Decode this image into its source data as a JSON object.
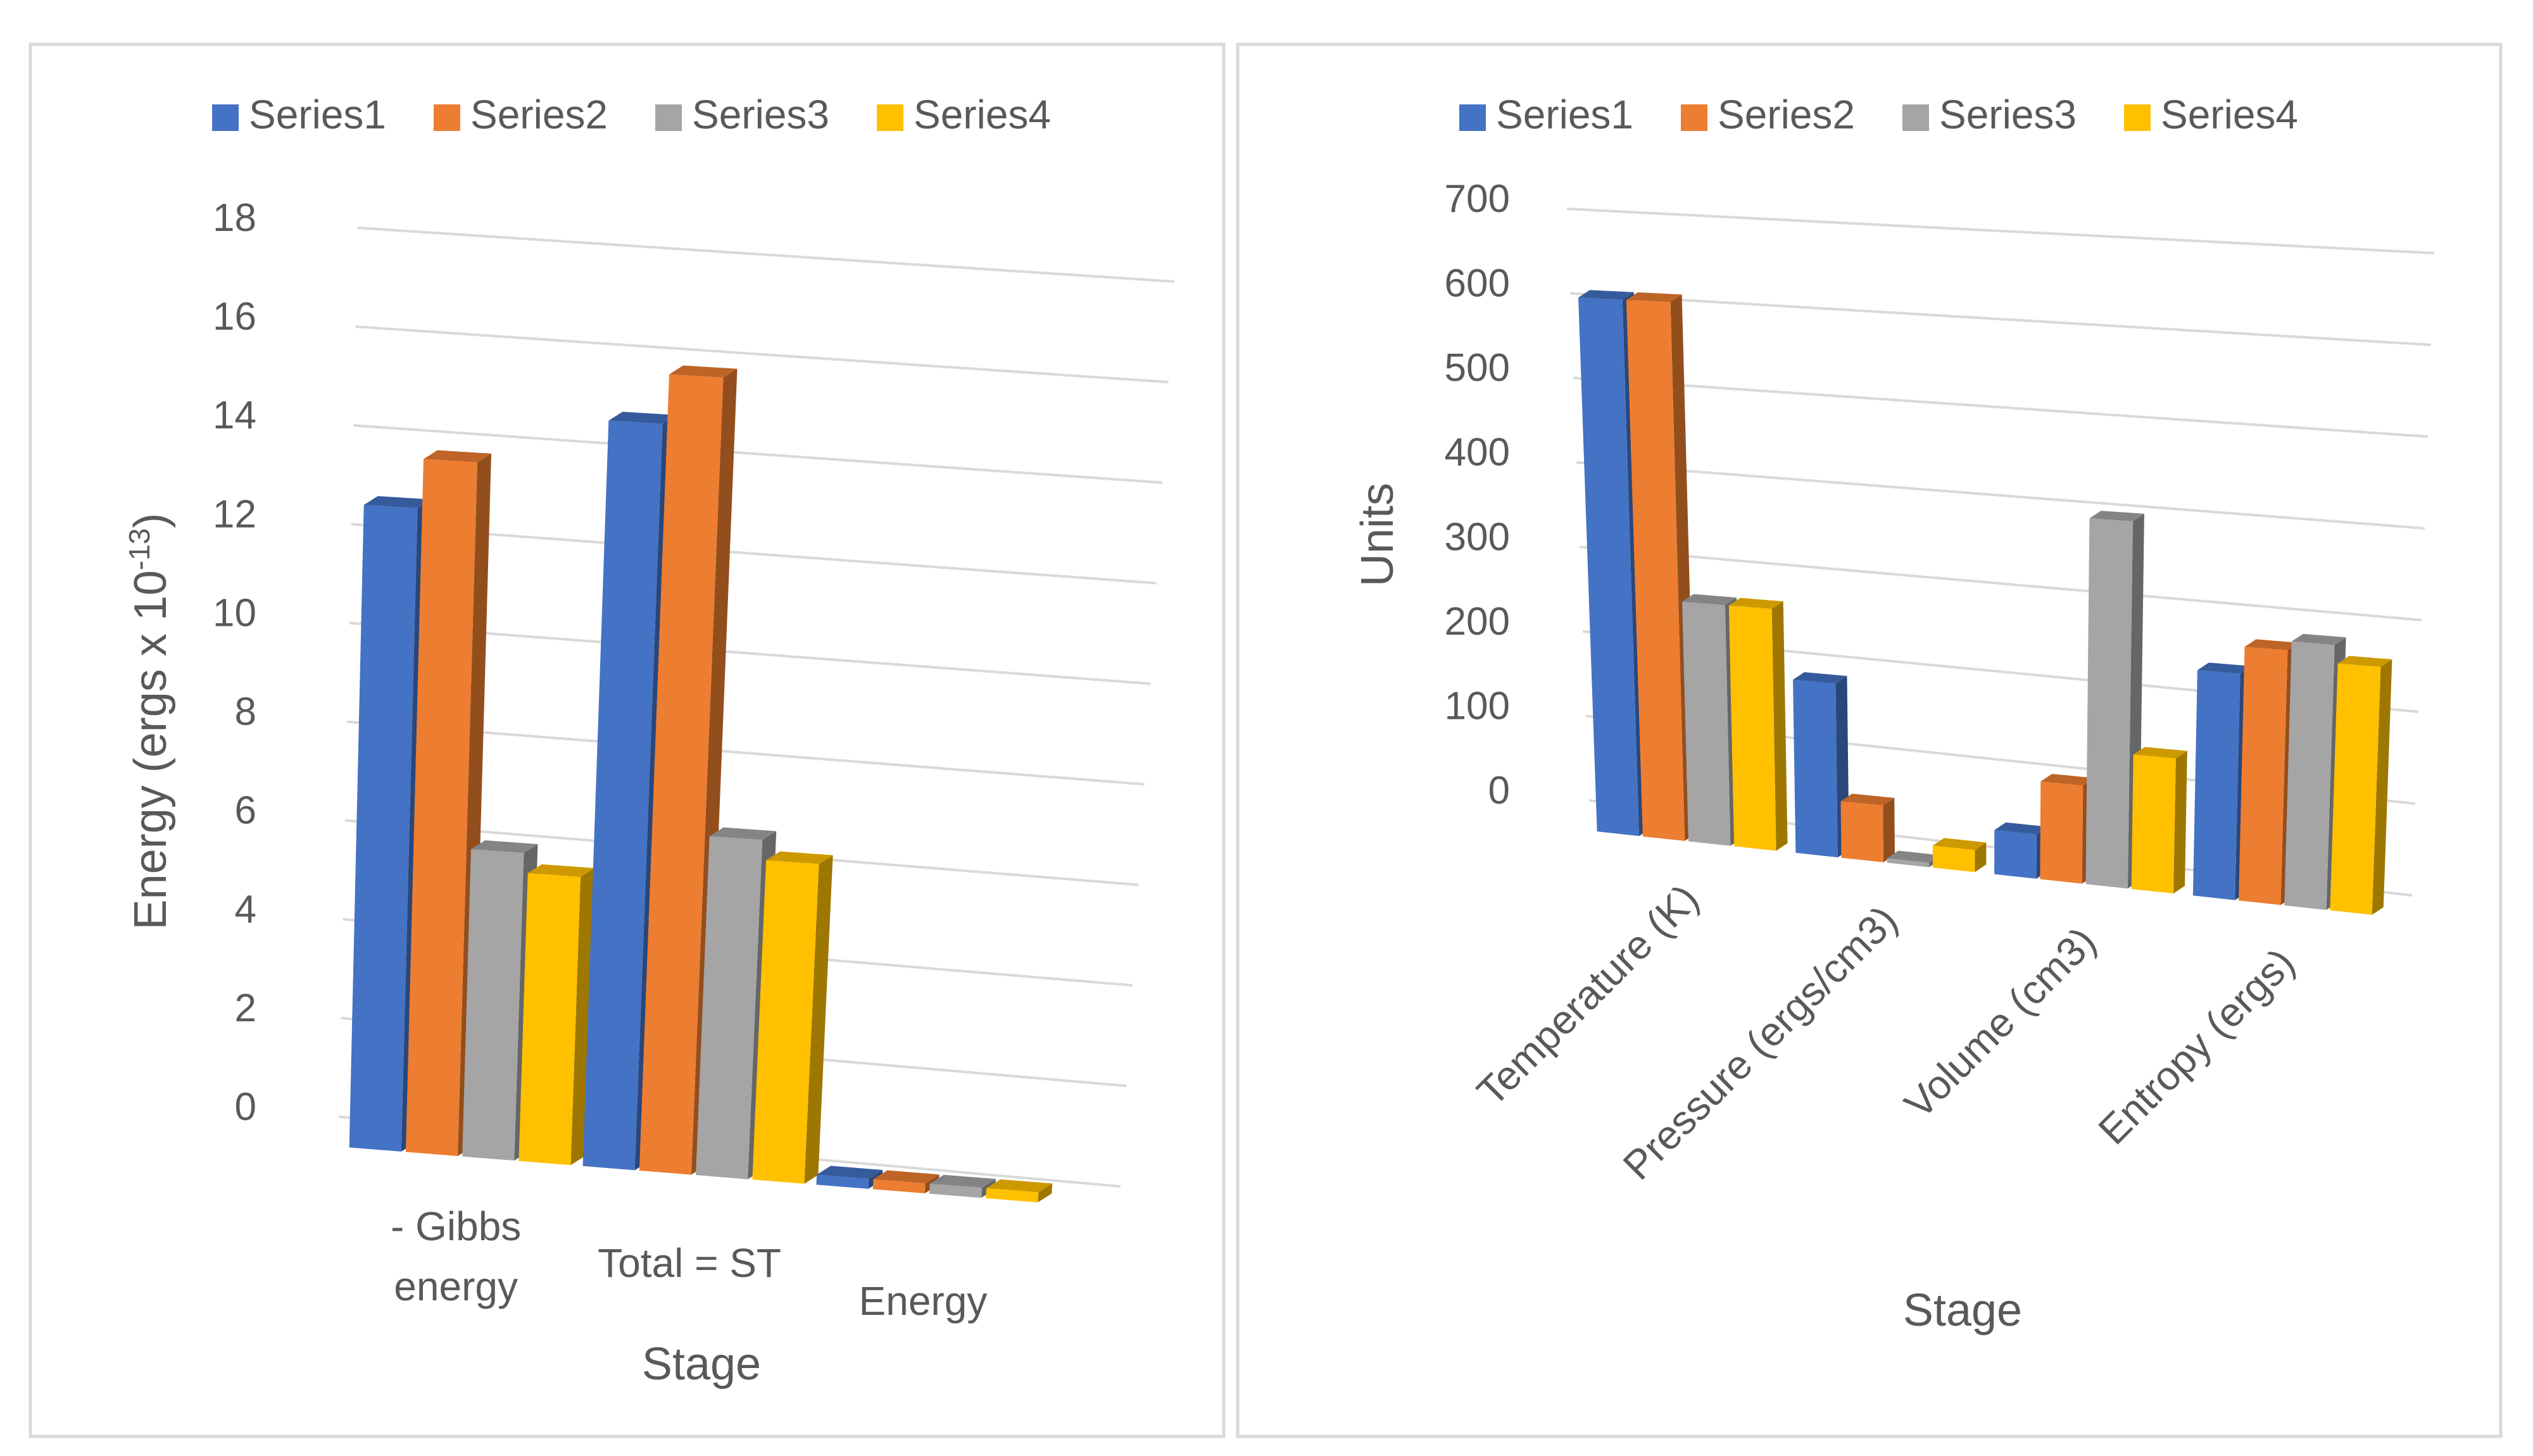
{
  "chart_data": [
    {
      "type": "bar",
      "title": "",
      "xlabel": "Stage",
      "ylabel": "Energy (ergs x 10",
      "ylabel_exponent": "-13",
      "ylabel_close": ")",
      "categories": [
        [
          "- Gibbs",
          "energy"
        ],
        [
          "Total = ST"
        ],
        [
          "Energy"
        ]
      ],
      "series": [
        {
          "name": "Series1",
          "values": [
            13.0,
            15.0,
            0.2
          ]
        },
        {
          "name": "Series2",
          "values": [
            14.0,
            16.0,
            0.2
          ]
        },
        {
          "name": "Series3",
          "values": [
            6.2,
            6.8,
            0.2
          ]
        },
        {
          "name": "Series4",
          "values": [
            5.8,
            6.4,
            0.2
          ]
        }
      ],
      "ylim": [
        0,
        18
      ],
      "yticks": [
        "0",
        "2",
        "4",
        "6",
        "8",
        "10",
        "12",
        "14",
        "16",
        "18"
      ],
      "grid": true,
      "legend": "top",
      "style": "3d-clustered-column"
    },
    {
      "type": "bar",
      "title": "",
      "xlabel": "Stage",
      "ylabel": "Units",
      "categories": [
        [
          "Temperature (K)"
        ],
        [
          "Pressure (ergs/cm3)"
        ],
        [
          "Volume (cm3)"
        ],
        [
          "Entropy (ergs)"
        ]
      ],
      "series": [
        {
          "name": "Series1",
          "values": [
            630,
            200,
            50,
            250
          ]
        },
        {
          "name": "Series2",
          "values": [
            630,
            65,
            110,
            280
          ]
        },
        {
          "name": "Series3",
          "values": [
            280,
            5,
            410,
            290
          ]
        },
        {
          "name": "Series4",
          "values": [
            280,
            25,
            150,
            270
          ]
        }
      ],
      "ylim": [
        0,
        700
      ],
      "yticks": [
        "0",
        "100",
        "200",
        "300",
        "400",
        "500",
        "600",
        "700"
      ],
      "grid": true,
      "legend": "top",
      "style": "3d-clustered-column"
    }
  ],
  "colors": {
    "Series1": "#4472C4",
    "Series2": "#ED7D31",
    "Series3": "#A5A5A5",
    "Series4": "#FFC000",
    "grid": "#D9D9D9",
    "text": "#595959",
    "border": "#D9D9D9"
  }
}
